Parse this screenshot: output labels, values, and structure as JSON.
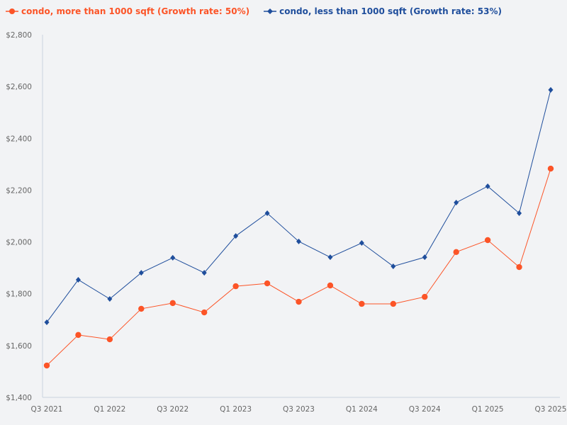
{
  "chart_data": {
    "type": "line",
    "title": "",
    "xlabel": "",
    "ylabel": "",
    "categories": [
      "Q3 2021",
      "Q4 2021",
      "Q1 2022",
      "Q2 2022",
      "Q3 2022",
      "Q4 2022",
      "Q1 2023",
      "Q2 2023",
      "Q3 2023",
      "Q4 2023",
      "Q1 2024",
      "Q2 2024",
      "Q3 2024",
      "Q4 2024",
      "Q1 2025",
      "Q2 2025",
      "Q3 2025"
    ],
    "x_tick_labels": [
      "Q3 2021",
      "Q1 2022",
      "Q3 2022",
      "Q1 2023",
      "Q3 2023",
      "Q1 2024",
      "Q3 2024",
      "Q1 2025",
      "Q3 2025"
    ],
    "ylim": [
      1400,
      2800
    ],
    "y_ticks": [
      1400,
      1600,
      1800,
      2000,
      2200,
      2400,
      2600,
      2800
    ],
    "y_tick_labels": [
      "$1,400",
      "$1,600",
      "$1,800",
      "$2,000",
      "$2,200",
      "$2,400",
      "$2,600",
      "$2,800"
    ],
    "grid": false,
    "legend_position": "top-left",
    "series": [
      {
        "name": "condo, more than 1000 sqft (Growth rate: 50%)",
        "color": "#fc5427",
        "marker": "circle",
        "values": [
          1523,
          1641,
          1624,
          1742,
          1764,
          1728,
          1829,
          1840,
          1769,
          1832,
          1761,
          1761,
          1788,
          1961,
          2007,
          1903,
          2283
        ]
      },
      {
        "name": "condo, less than 1000 sqft (Growth rate: 53%)",
        "color": "#1f4e9c",
        "marker": "diamond",
        "values": [
          1690,
          1854,
          1780,
          1881,
          1939,
          1881,
          2023,
          2111,
          2002,
          1941,
          1996,
          1906,
          1941,
          2152,
          2215,
          2111,
          2587
        ]
      }
    ]
  }
}
